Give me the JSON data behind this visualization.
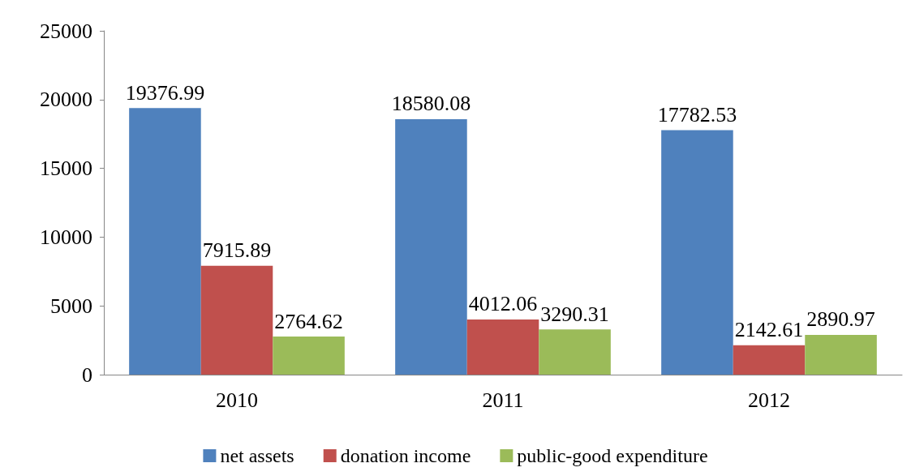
{
  "chart_data": {
    "type": "bar",
    "categories": [
      "2010",
      "2011",
      "2012"
    ],
    "series": [
      {
        "name": "net assets",
        "color": "#4f81bd",
        "values": [
          19376.99,
          18580.08,
          17782.53
        ]
      },
      {
        "name": "donation income",
        "color": "#c0504d",
        "values": [
          7915.89,
          4012.06,
          2142.61
        ]
      },
      {
        "name": "public-good expenditure",
        "color": "#9bbb59",
        "values": [
          2764.62,
          3290.31,
          2890.97
        ]
      }
    ],
    "ylim": [
      0,
      25000
    ],
    "yticks": [
      0,
      5000,
      10000,
      15000,
      20000,
      25000
    ],
    "grid": false,
    "legend": "bottom",
    "data_labels": true
  }
}
